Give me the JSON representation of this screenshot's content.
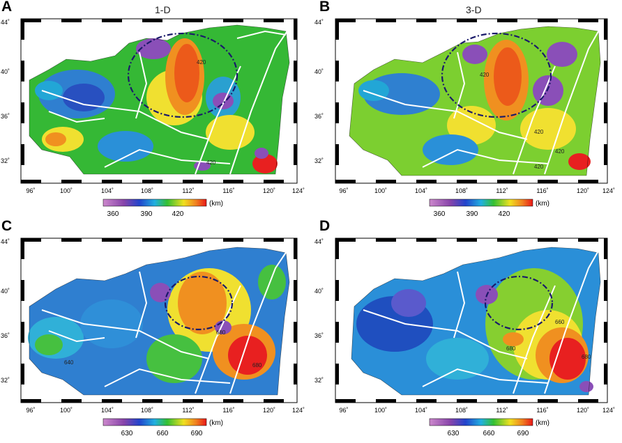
{
  "panels": [
    {
      "letter": "A",
      "title": "1-D"
    },
    {
      "letter": "B",
      "title": "3-D"
    },
    {
      "letter": "C",
      "title": ""
    },
    {
      "letter": "D",
      "title": ""
    }
  ],
  "axes": {
    "lon_ticks": [
      "96˚",
      "100˚",
      "104˚",
      "108˚",
      "112˚",
      "116˚",
      "120˚",
      "124˚"
    ],
    "lat_ticks": [
      "44˚",
      "40˚",
      "36˚",
      "32˚"
    ]
  },
  "colorbars": {
    "top": {
      "ticks": [
        "360",
        "390",
        "420"
      ],
      "unit": "(km)"
    },
    "bottom": {
      "ticks": [
        "630",
        "660",
        "690"
      ],
      "unit": "(km)"
    }
  },
  "contour_labels": {
    "A": [
      "420",
      "420"
    ],
    "B": [
      "420",
      "420",
      "420",
      "420"
    ],
    "C": [
      "680",
      "680",
      "640"
    ],
    "D": [
      "680",
      "680",
      "660"
    ]
  },
  "colors": {
    "purple": "#8a4fb8",
    "blue": "#1f4fbf",
    "cyan": "#30b0d8",
    "green": "#46c040",
    "yellow": "#f0e030",
    "orange": "#f08020",
    "red": "#e82020",
    "fault_lines": "#ffffff",
    "region_ellipse": "#1a1a6a"
  }
}
